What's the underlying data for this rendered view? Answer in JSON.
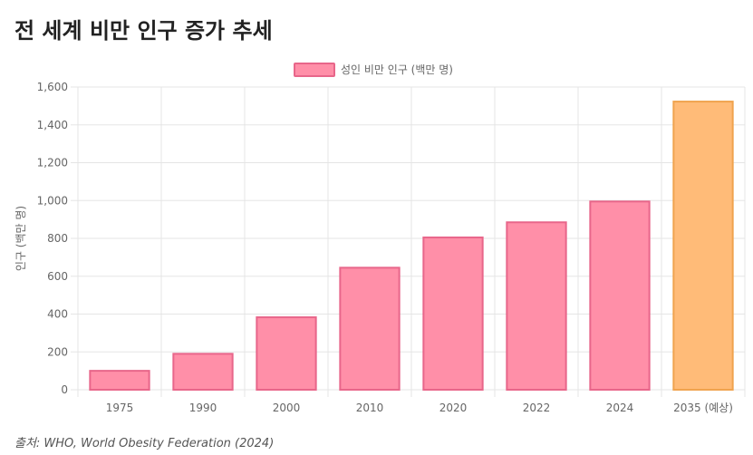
{
  "header": {
    "title": "전 세계 비만 인구 증가 추세"
  },
  "footer": {
    "source": "출처: WHO, World Obesity Federation (2024)"
  },
  "colors": {
    "bar_fill": "#ff8fa8",
    "bar_border": "#e8668a",
    "forecast_fill": "#ffbb78",
    "forecast_border": "#f0a34e",
    "grid": "#e5e5e5"
  },
  "chart_data": {
    "type": "bar",
    "categories": [
      "1975",
      "1990",
      "2000",
      "2010",
      "2020",
      "2022",
      "2024",
      "2035 (예상)"
    ],
    "series": [
      {
        "name": "성인 비만 인구 (백만 명)",
        "values": [
          100,
          190,
          383,
          645,
          805,
          885,
          995,
          1523
        ]
      }
    ],
    "forecast_index": 7,
    "title": "",
    "xlabel": "",
    "ylabel": "인구 (백만 명)",
    "ylim": [
      0,
      1600
    ],
    "yticks": [
      0,
      200,
      400,
      600,
      800,
      1000,
      1200,
      1400,
      1600
    ],
    "ytick_labels": [
      "0",
      "200",
      "400",
      "600",
      "800",
      "1,000",
      "1,200",
      "1,400",
      "1,600"
    ],
    "grid": true,
    "legend_position": "top-center"
  }
}
